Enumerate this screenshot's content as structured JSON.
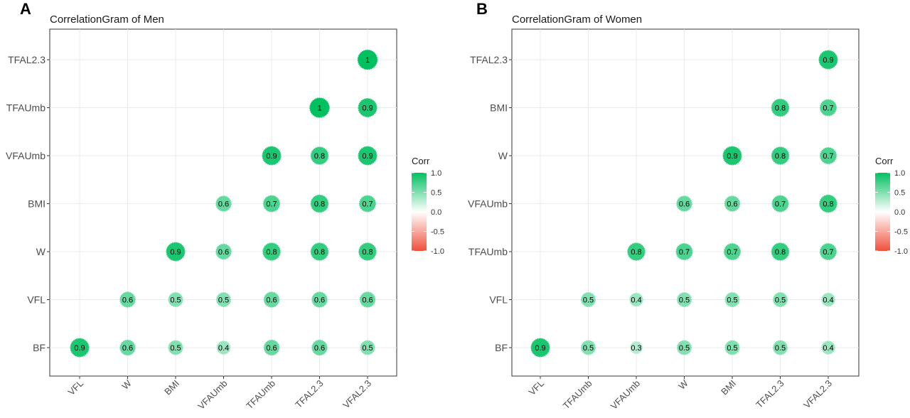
{
  "chart_data": [
    {
      "type": "correlogram",
      "panel_label": "A",
      "title": "CorrelationGram of Men",
      "x_categories": [
        "VFL",
        "W",
        "BMI",
        "VFAUmb",
        "TFAUmb",
        "TFAL2.3",
        "VFAL2.3"
      ],
      "y_categories": [
        "BF",
        "VFL",
        "W",
        "BMI",
        "VFAUmb",
        "TFAUmb",
        "TFAL2.3"
      ],
      "cells": [
        {
          "x": "VFL",
          "y": "BF",
          "value": 0.9,
          "label": "0.9"
        },
        {
          "x": "W",
          "y": "BF",
          "value": 0.6,
          "label": "0.6"
        },
        {
          "x": "W",
          "y": "VFL",
          "value": 0.6,
          "label": "0.6"
        },
        {
          "x": "BMI",
          "y": "BF",
          "value": 0.5,
          "label": "0.5"
        },
        {
          "x": "BMI",
          "y": "VFL",
          "value": 0.5,
          "label": "0.5"
        },
        {
          "x": "BMI",
          "y": "W",
          "value": 0.9,
          "label": "0.9"
        },
        {
          "x": "VFAUmb",
          "y": "BF",
          "value": 0.4,
          "label": "0.4"
        },
        {
          "x": "VFAUmb",
          "y": "VFL",
          "value": 0.5,
          "label": "0.5"
        },
        {
          "x": "VFAUmb",
          "y": "W",
          "value": 0.6,
          "label": "0.6"
        },
        {
          "x": "VFAUmb",
          "y": "BMI",
          "value": 0.6,
          "label": "0.6"
        },
        {
          "x": "TFAUmb",
          "y": "BF",
          "value": 0.6,
          "label": "0.6"
        },
        {
          "x": "TFAUmb",
          "y": "VFL",
          "value": 0.6,
          "label": "0.6"
        },
        {
          "x": "TFAUmb",
          "y": "W",
          "value": 0.8,
          "label": "0.8"
        },
        {
          "x": "TFAUmb",
          "y": "BMI",
          "value": 0.7,
          "label": "0.7"
        },
        {
          "x": "TFAUmb",
          "y": "VFAUmb",
          "value": 0.9,
          "label": "0.9"
        },
        {
          "x": "TFAL2.3",
          "y": "BF",
          "value": 0.6,
          "label": "0.6"
        },
        {
          "x": "TFAL2.3",
          "y": "VFL",
          "value": 0.6,
          "label": "0.6"
        },
        {
          "x": "TFAL2.3",
          "y": "W",
          "value": 0.8,
          "label": "0.8"
        },
        {
          "x": "TFAL2.3",
          "y": "BMI",
          "value": 0.8,
          "label": "0.8"
        },
        {
          "x": "TFAL2.3",
          "y": "VFAUmb",
          "value": 0.8,
          "label": "0.8"
        },
        {
          "x": "TFAL2.3",
          "y": "TFAUmb",
          "value": 1.0,
          "label": "1"
        },
        {
          "x": "VFAL2.3",
          "y": "BF",
          "value": 0.5,
          "label": "0.5"
        },
        {
          "x": "VFAL2.3",
          "y": "VFL",
          "value": 0.6,
          "label": "0.6"
        },
        {
          "x": "VFAL2.3",
          "y": "W",
          "value": 0.8,
          "label": "0.8"
        },
        {
          "x": "VFAL2.3",
          "y": "BMI",
          "value": 0.7,
          "label": "0.7"
        },
        {
          "x": "VFAL2.3",
          "y": "VFAUmb",
          "value": 0.9,
          "label": "0.9"
        },
        {
          "x": "VFAL2.3",
          "y": "TFAUmb",
          "value": 0.9,
          "label": "0.9"
        },
        {
          "x": "VFAL2.3",
          "y": "TFAL2.3",
          "value": 1.0,
          "label": "1"
        }
      ],
      "legend": {
        "title": "Corr",
        "ticks": [
          "1.0",
          "0.5",
          "0.0",
          "-0.5",
          "-1.0"
        ],
        "placement": "right"
      },
      "colors": {
        "high": "#00c060",
        "mid": "#ffffff",
        "low": "#f0503c"
      },
      "grid": true
    },
    {
      "type": "correlogram",
      "panel_label": "B",
      "title": "CorrelationGram of Women",
      "x_categories": [
        "VFL",
        "TFAUmb",
        "VFAUmb",
        "W",
        "BMI",
        "TFAL2.3",
        "VFAL2.3"
      ],
      "y_categories": [
        "BF",
        "VFL",
        "TFAUmb",
        "VFAUmb",
        "W",
        "BMI",
        "TFAL2.3"
      ],
      "cells": [
        {
          "x": "VFL",
          "y": "BF",
          "value": 0.9,
          "label": "0.9"
        },
        {
          "x": "TFAUmb",
          "y": "BF",
          "value": 0.5,
          "label": "0.5"
        },
        {
          "x": "TFAUmb",
          "y": "VFL",
          "value": 0.5,
          "label": "0.5"
        },
        {
          "x": "VFAUmb",
          "y": "BF",
          "value": 0.3,
          "label": "0.3"
        },
        {
          "x": "VFAUmb",
          "y": "VFL",
          "value": 0.4,
          "label": "0.4"
        },
        {
          "x": "VFAUmb",
          "y": "TFAUmb",
          "value": 0.8,
          "label": "0.8"
        },
        {
          "x": "W",
          "y": "BF",
          "value": 0.5,
          "label": "0.5"
        },
        {
          "x": "W",
          "y": "VFL",
          "value": 0.5,
          "label": "0.5"
        },
        {
          "x": "W",
          "y": "TFAUmb",
          "value": 0.7,
          "label": "0.7"
        },
        {
          "x": "W",
          "y": "VFAUmb",
          "value": 0.6,
          "label": "0.6"
        },
        {
          "x": "BMI",
          "y": "BF",
          "value": 0.5,
          "label": "0.5"
        },
        {
          "x": "BMI",
          "y": "VFL",
          "value": 0.5,
          "label": "0.5"
        },
        {
          "x": "BMI",
          "y": "TFAUmb",
          "value": 0.7,
          "label": "0.7"
        },
        {
          "x": "BMI",
          "y": "VFAUmb",
          "value": 0.6,
          "label": "0.6"
        },
        {
          "x": "BMI",
          "y": "W",
          "value": 0.9,
          "label": "0.9"
        },
        {
          "x": "TFAL2.3",
          "y": "BF",
          "value": 0.5,
          "label": "0.5"
        },
        {
          "x": "TFAL2.3",
          "y": "VFL",
          "value": 0.5,
          "label": "0.5"
        },
        {
          "x": "TFAL2.3",
          "y": "TFAUmb",
          "value": 0.8,
          "label": "0.8"
        },
        {
          "x": "TFAL2.3",
          "y": "VFAUmb",
          "value": 0.7,
          "label": "0.7"
        },
        {
          "x": "TFAL2.3",
          "y": "W",
          "value": 0.8,
          "label": "0.8"
        },
        {
          "x": "TFAL2.3",
          "y": "BMI",
          "value": 0.8,
          "label": "0.8"
        },
        {
          "x": "VFAL2.3",
          "y": "BF",
          "value": 0.4,
          "label": "0.4"
        },
        {
          "x": "VFAL2.3",
          "y": "VFL",
          "value": 0.4,
          "label": "0.4"
        },
        {
          "x": "VFAL2.3",
          "y": "TFAUmb",
          "value": 0.7,
          "label": "0.7"
        },
        {
          "x": "VFAL2.3",
          "y": "VFAUmb",
          "value": 0.8,
          "label": "0.8"
        },
        {
          "x": "VFAL2.3",
          "y": "W",
          "value": 0.7,
          "label": "0.7"
        },
        {
          "x": "VFAL2.3",
          "y": "BMI",
          "value": 0.7,
          "label": "0.7"
        },
        {
          "x": "VFAL2.3",
          "y": "TFAL2.3",
          "value": 0.9,
          "label": "0.9"
        }
      ],
      "legend": {
        "title": "Corr",
        "ticks": [
          "1.0",
          "0.5",
          "0.0",
          "-0.5",
          "-1.0"
        ],
        "placement": "right"
      },
      "colors": {
        "high": "#00c060",
        "mid": "#ffffff",
        "low": "#f0503c"
      },
      "grid": true
    }
  ]
}
